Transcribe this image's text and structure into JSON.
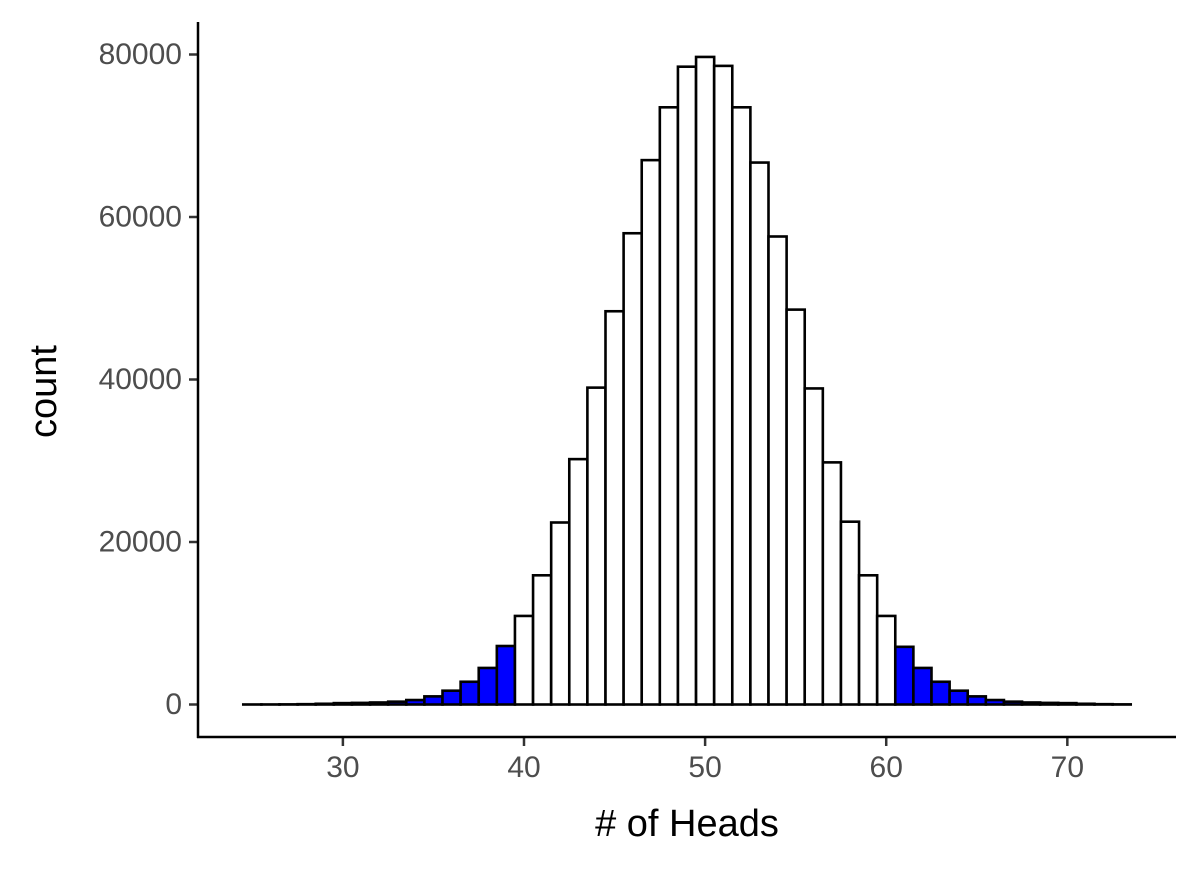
{
  "chart_data": {
    "type": "bar",
    "title": "",
    "xlabel": "# of Heads",
    "ylabel": "count",
    "xlim": [
      22,
      76
    ],
    "ylim": [
      -4000,
      84000
    ],
    "x_ticks": [
      30,
      40,
      50,
      60,
      70
    ],
    "x_tick_labels": [
      "30",
      "40",
      "50",
      "60",
      "70"
    ],
    "y_ticks": [
      0,
      20000,
      40000,
      60000,
      80000
    ],
    "y_tick_labels": [
      "0",
      "20000",
      "40000",
      "60000",
      "80000"
    ],
    "grid": false,
    "legend": "none",
    "fill_colors": {
      "tail": "#0000ff",
      "center": "#ffffff",
      "outline": "#000000"
    },
    "bins": [
      {
        "x": 25,
        "count": 2,
        "highlighted": true
      },
      {
        "x": 26,
        "count": 6,
        "highlighted": true
      },
      {
        "x": 27,
        "count": 16,
        "highlighted": true
      },
      {
        "x": 28,
        "count": 40,
        "highlighted": true
      },
      {
        "x": 29,
        "count": 90,
        "highlighted": true
      },
      {
        "x": 30,
        "count": 170,
        "highlighted": true
      },
      {
        "x": 31,
        "count": 200,
        "highlighted": true
      },
      {
        "x": 32,
        "count": 250,
        "highlighted": true
      },
      {
        "x": 33,
        "count": 350,
        "highlighted": true
      },
      {
        "x": 34,
        "count": 550,
        "highlighted": true
      },
      {
        "x": 35,
        "count": 1000,
        "highlighted": true
      },
      {
        "x": 36,
        "count": 1700,
        "highlighted": true
      },
      {
        "x": 37,
        "count": 2800,
        "highlighted": true
      },
      {
        "x": 38,
        "count": 4500,
        "highlighted": true
      },
      {
        "x": 39,
        "count": 7200,
        "highlighted": true
      },
      {
        "x": 40,
        "count": 10900,
        "highlighted": false
      },
      {
        "x": 41,
        "count": 15900,
        "highlighted": false
      },
      {
        "x": 42,
        "count": 22400,
        "highlighted": false
      },
      {
        "x": 43,
        "count": 30200,
        "highlighted": false
      },
      {
        "x": 44,
        "count": 39000,
        "highlighted": false
      },
      {
        "x": 45,
        "count": 48400,
        "highlighted": false
      },
      {
        "x": 46,
        "count": 58000,
        "highlighted": false
      },
      {
        "x": 47,
        "count": 67000,
        "highlighted": false
      },
      {
        "x": 48,
        "count": 73500,
        "highlighted": false
      },
      {
        "x": 49,
        "count": 78500,
        "highlighted": false
      },
      {
        "x": 50,
        "count": 79700,
        "highlighted": false
      },
      {
        "x": 51,
        "count": 78600,
        "highlighted": false
      },
      {
        "x": 52,
        "count": 73500,
        "highlighted": false
      },
      {
        "x": 53,
        "count": 66700,
        "highlighted": false
      },
      {
        "x": 54,
        "count": 57600,
        "highlighted": false
      },
      {
        "x": 55,
        "count": 48600,
        "highlighted": false
      },
      {
        "x": 56,
        "count": 38900,
        "highlighted": false
      },
      {
        "x": 57,
        "count": 29800,
        "highlighted": false
      },
      {
        "x": 58,
        "count": 22500,
        "highlighted": false
      },
      {
        "x": 59,
        "count": 15900,
        "highlighted": false
      },
      {
        "x": 60,
        "count": 10900,
        "highlighted": false
      },
      {
        "x": 61,
        "count": 7100,
        "highlighted": true
      },
      {
        "x": 62,
        "count": 4500,
        "highlighted": true
      },
      {
        "x": 63,
        "count": 2800,
        "highlighted": true
      },
      {
        "x": 64,
        "count": 1700,
        "highlighted": true
      },
      {
        "x": 65,
        "count": 1000,
        "highlighted": true
      },
      {
        "x": 66,
        "count": 550,
        "highlighted": true
      },
      {
        "x": 67,
        "count": 350,
        "highlighted": true
      },
      {
        "x": 68,
        "count": 250,
        "highlighted": true
      },
      {
        "x": 69,
        "count": 200,
        "highlighted": true
      },
      {
        "x": 70,
        "count": 170,
        "highlighted": true
      },
      {
        "x": 71,
        "count": 90,
        "highlighted": true
      },
      {
        "x": 72,
        "count": 40,
        "highlighted": true
      },
      {
        "x": 73,
        "count": 16,
        "highlighted": true
      }
    ]
  }
}
